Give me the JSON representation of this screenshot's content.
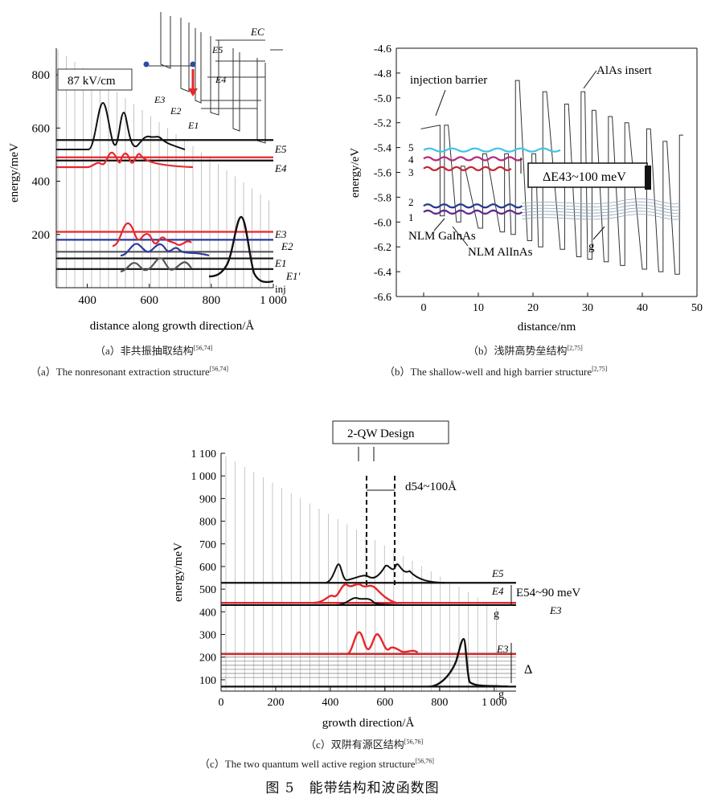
{
  "figure_title": "图 5　能带结构和波函数图",
  "captions": {
    "a_cn": "（a）非共振抽取结构",
    "a_cn_ref": "[56,74]",
    "a_en": "（a）The nonresonant extraction structure",
    "a_en_ref": "[56,74]",
    "b_cn": "（b）浅阱高势垒结构",
    "b_cn_ref": "[2,75]",
    "b_en": "（b）The shallow-well and high barrier structure",
    "b_en_ref": "[2,75]",
    "c_cn": "（c）双阱有源区结构",
    "c_cn_ref": "[56,76]",
    "c_en": "（c）The two quantum well active region structure",
    "c_en_ref": "[56,76]"
  },
  "colors": {
    "black": "#111111",
    "red": "#e8262b",
    "blue": "#2b3a9a",
    "gray": "#555555",
    "cyan": "#3fc3e8",
    "magenta": "#b52a7a",
    "purple": "#5b2a8a",
    "darkred": "#c2283a",
    "navy": "#243c8c"
  },
  "chart_data": [
    {
      "id": "a",
      "type": "line",
      "xlabel": "distance along growth direction/Å",
      "ylabel": "energy/meV",
      "xlim": [
        300,
        1000
      ],
      "ylim": [
        0,
        900
      ],
      "x_ticks": [
        400,
        600,
        800,
        "1 000"
      ],
      "y_ticks": [
        200,
        400,
        600,
        800
      ],
      "annotation_box": "87 kV/cm",
      "level_labels": [
        "E5",
        "E4",
        "E3",
        "E2",
        "E1",
        "E1'",
        "inj"
      ],
      "inset_labels": [
        "EC",
        "E5",
        "E4",
        "E3",
        "E2",
        "E1"
      ],
      "levels": [
        {
          "name": "E5",
          "energy": 555,
          "color": "black"
        },
        {
          "name": "E4",
          "energy": 490,
          "color": "red"
        },
        {
          "name": "E4 baseline",
          "energy": 478,
          "color": "black"
        },
        {
          "name": "E3",
          "energy": 210,
          "color": "red"
        },
        {
          "name": "E2",
          "energy": 180,
          "color": "blue"
        },
        {
          "name": "E1",
          "energy": 135,
          "color": "gray"
        },
        {
          "name": "E1'",
          "energy": 110,
          "color": "black"
        },
        {
          "name": "inj",
          "energy": 70,
          "color": "black"
        }
      ]
    },
    {
      "id": "b",
      "type": "line",
      "xlabel": "distance/nm",
      "ylabel": "energy/eV",
      "xlim": [
        -5,
        50
      ],
      "ylim": [
        -6.6,
        -4.6
      ],
      "x_ticks": [
        0,
        10,
        20,
        30,
        40,
        50
      ],
      "y_ticks": [
        -4.6,
        -4.8,
        -5.0,
        -5.2,
        -5.4,
        -5.6,
        -5.8,
        -6.0,
        -6.2,
        -6.4,
        -6.6
      ],
      "annotations": [
        "injection barrier",
        "AlAs insert",
        "ΔE43~100 meV",
        "NLM GaInAs",
        "NLM AlInAs",
        "g"
      ],
      "level_numbers": [
        "5",
        "4",
        "3",
        "2",
        "1"
      ],
      "levels": [
        {
          "name": "5",
          "energy": -5.42,
          "color": "cyan"
        },
        {
          "name": "4",
          "energy": -5.49,
          "color": "magenta"
        },
        {
          "name": "3",
          "energy": -5.57,
          "color": "darkred"
        },
        {
          "name": "2",
          "energy": -5.87,
          "color": "navy"
        },
        {
          "name": "1",
          "energy": -5.92,
          "color": "purple"
        }
      ]
    },
    {
      "id": "c",
      "type": "line",
      "xlabel": "growth direction/Å",
      "ylabel": "energy/meV",
      "xlim": [
        0,
        1080
      ],
      "ylim": [
        50,
        1100
      ],
      "x_ticks": [
        0,
        200,
        400,
        600,
        800,
        "1 000"
      ],
      "y_ticks": [
        100,
        200,
        300,
        400,
        500,
        600,
        700,
        800,
        900,
        "1 000",
        "1 100"
      ],
      "annotations": [
        "2-QW Design",
        "d54~100Å",
        "E54~90 meV",
        "Δ"
      ],
      "level_labels": [
        "E5",
        "E4",
        "g",
        "E3",
        "E3",
        "g"
      ],
      "levels": [
        {
          "name": "E5",
          "energy": 528,
          "color": "black"
        },
        {
          "name": "E4",
          "energy": 440,
          "color": "red"
        },
        {
          "name": "g",
          "energy": 430,
          "color": "black"
        },
        {
          "name": "E3",
          "energy": 213,
          "color": "red"
        },
        {
          "name": "g",
          "energy": 70,
          "color": "black"
        }
      ]
    }
  ]
}
